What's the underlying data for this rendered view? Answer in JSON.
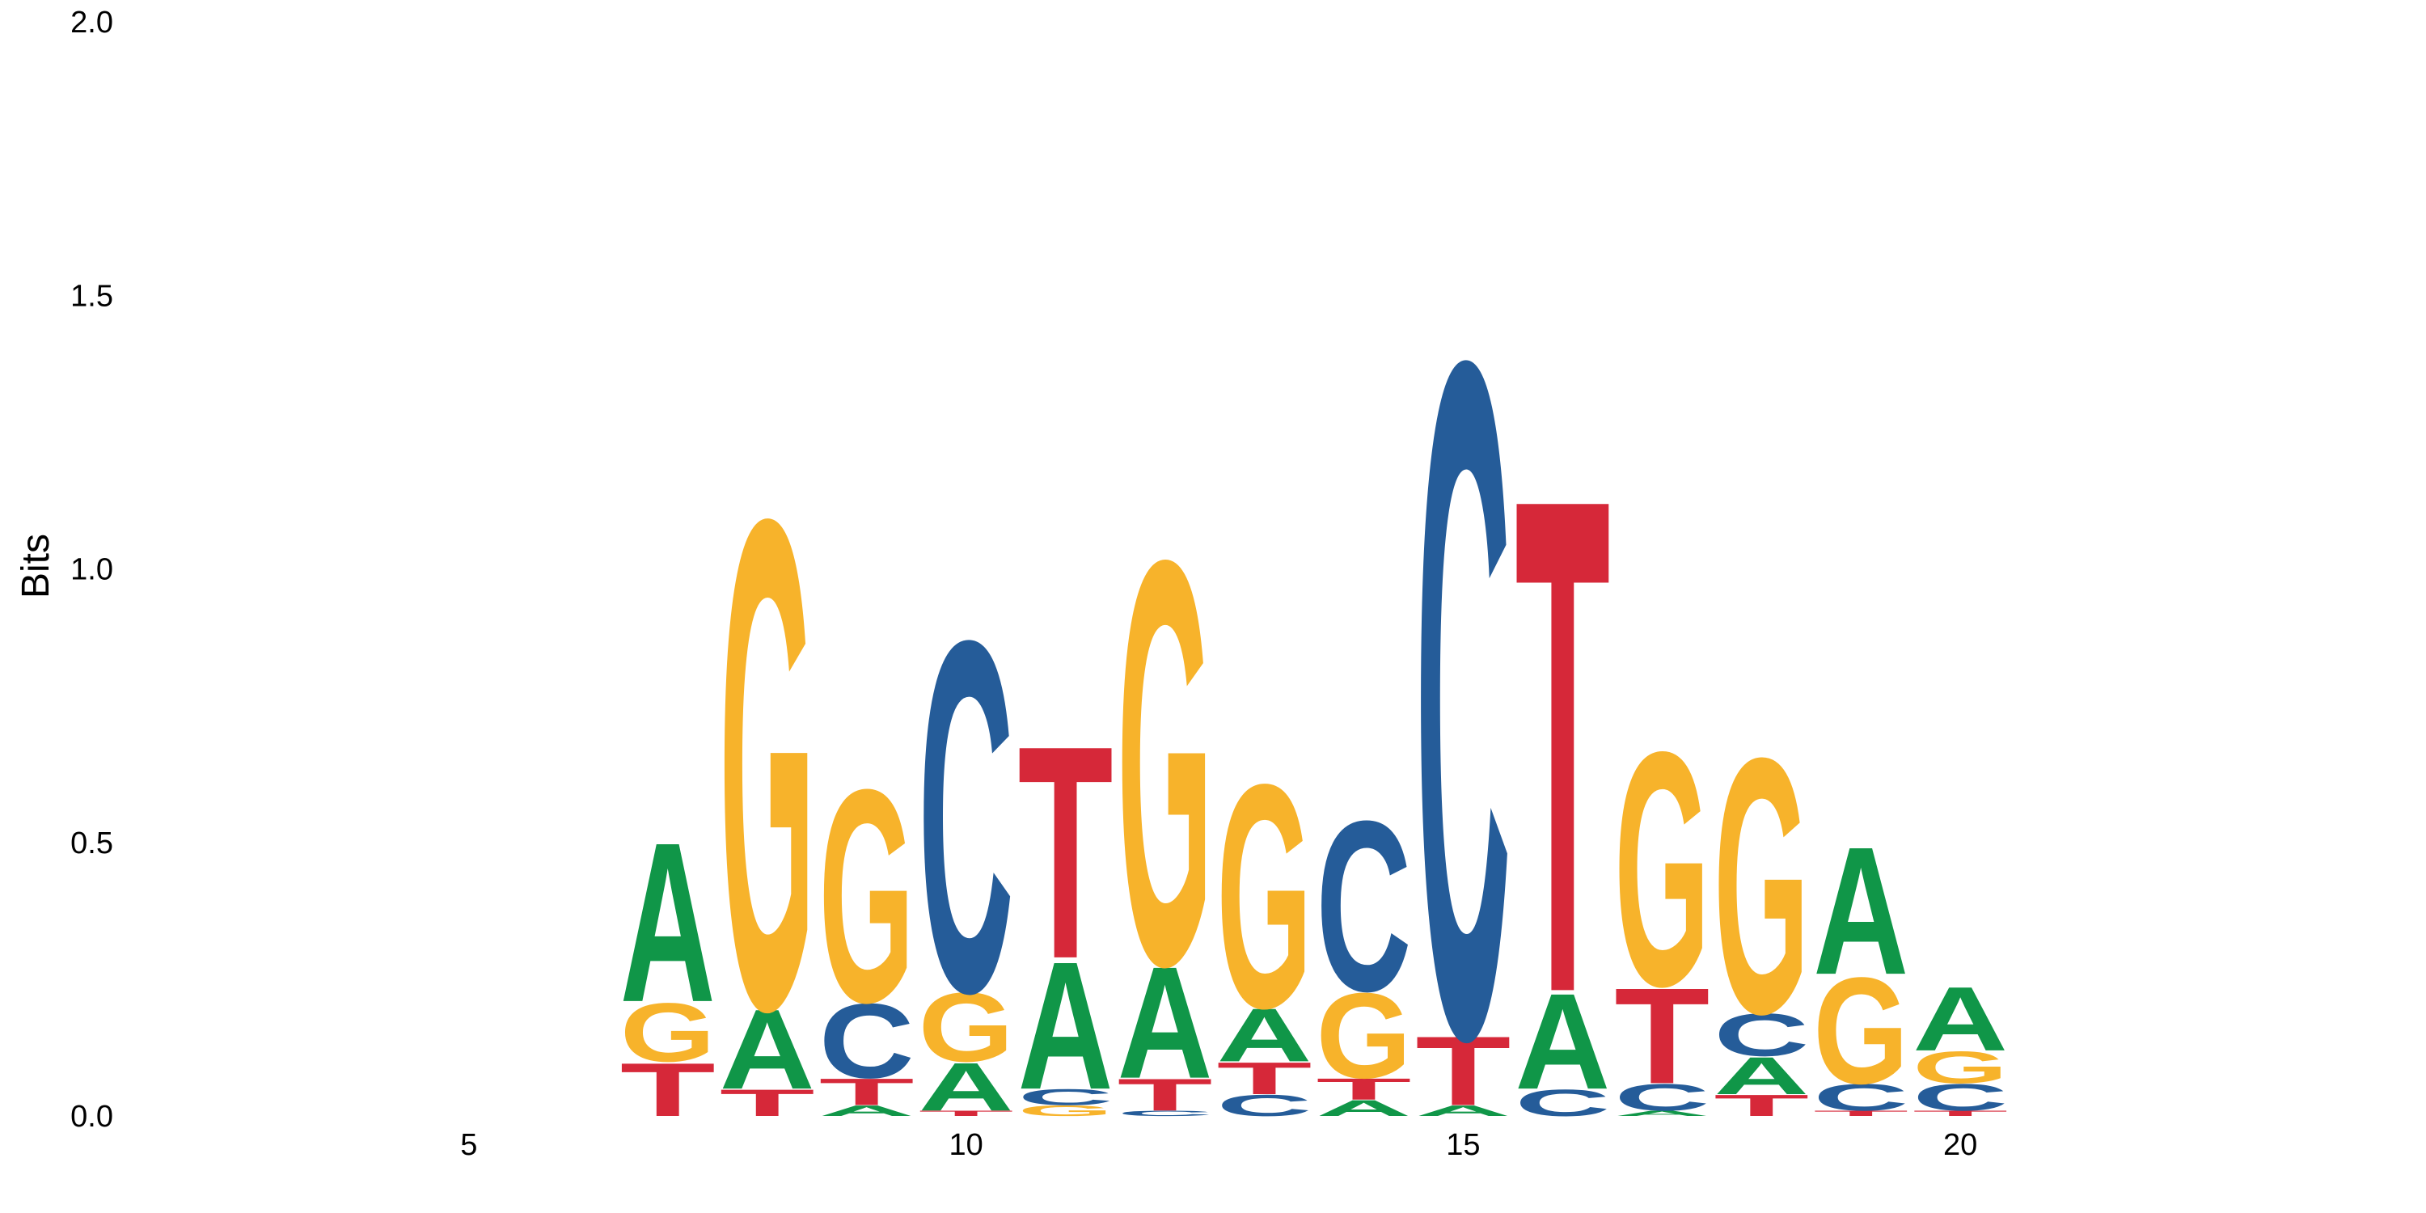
{
  "chart_data": {
    "type": "sequence-logo",
    "ylabel": "Bits",
    "ylim": [
      0,
      2.0
    ],
    "y_ticks": [
      "0.0",
      "0.5",
      "1.0",
      "1.5",
      "2.0"
    ],
    "x_range": [
      1,
      24
    ],
    "x_ticks": [
      "5",
      "10",
      "15",
      "20"
    ],
    "colors": {
      "A": "#109648",
      "C": "#255c99",
      "G": "#f7b32b",
      "T": "#d62839"
    },
    "positions": [
      {
        "pos": 7,
        "letters": [
          {
            "base": "T",
            "bits": 0.1
          },
          {
            "base": "G",
            "bits": 0.11
          },
          {
            "base": "A",
            "bits": 0.3
          }
        ]
      },
      {
        "pos": 8,
        "letters": [
          {
            "base": "T",
            "bits": 0.05
          },
          {
            "base": "A",
            "bits": 0.15
          },
          {
            "base": "G",
            "bits": 0.92
          }
        ]
      },
      {
        "pos": 9,
        "letters": [
          {
            "base": "A",
            "bits": 0.02
          },
          {
            "base": "T",
            "bits": 0.05
          },
          {
            "base": "C",
            "bits": 0.14
          },
          {
            "base": "G",
            "bits": 0.4
          }
        ]
      },
      {
        "pos": 10,
        "letters": [
          {
            "base": "T",
            "bits": 0.01
          },
          {
            "base": "A",
            "bits": 0.09
          },
          {
            "base": "G",
            "bits": 0.13
          },
          {
            "base": "C",
            "bits": 0.66
          }
        ]
      },
      {
        "pos": 11,
        "letters": [
          {
            "base": "G",
            "bits": 0.02
          },
          {
            "base": "C",
            "bits": 0.03
          },
          {
            "base": "A",
            "bits": 0.24
          },
          {
            "base": "T",
            "bits": 0.4
          }
        ]
      },
      {
        "pos": 12,
        "letters": [
          {
            "base": "C",
            "bits": 0.01
          },
          {
            "base": "T",
            "bits": 0.06
          },
          {
            "base": "A",
            "bits": 0.21
          },
          {
            "base": "G",
            "bits": 0.76
          }
        ]
      },
      {
        "pos": 13,
        "letters": [
          {
            "base": "C",
            "bits": 0.04
          },
          {
            "base": "T",
            "bits": 0.06
          },
          {
            "base": "A",
            "bits": 0.1
          },
          {
            "base": "G",
            "bits": 0.42
          }
        ]
      },
      {
        "pos": 14,
        "letters": [
          {
            "base": "A",
            "bits": 0.03
          },
          {
            "base": "T",
            "bits": 0.04
          },
          {
            "base": "G",
            "bits": 0.16
          },
          {
            "base": "C",
            "bits": 0.32
          }
        ]
      },
      {
        "pos": 15,
        "letters": [
          {
            "base": "A",
            "bits": 0.02
          },
          {
            "base": "T",
            "bits": 0.13
          },
          {
            "base": "C",
            "bits": 1.27
          }
        ]
      },
      {
        "pos": 16,
        "letters": [
          {
            "base": "C",
            "bits": 0.05
          },
          {
            "base": "A",
            "bits": 0.18
          },
          {
            "base": "T",
            "bits": 0.93
          }
        ]
      },
      {
        "pos": 17,
        "letters": [
          {
            "base": "A",
            "bits": 0.01
          },
          {
            "base": "C",
            "bits": 0.05
          },
          {
            "base": "T",
            "bits": 0.18
          },
          {
            "base": "G",
            "bits": 0.44
          }
        ]
      },
      {
        "pos": 18,
        "letters": [
          {
            "base": "T",
            "bits": 0.04
          },
          {
            "base": "A",
            "bits": 0.07
          },
          {
            "base": "C",
            "bits": 0.08
          },
          {
            "base": "G",
            "bits": 0.48
          }
        ]
      },
      {
        "pos": 19,
        "letters": [
          {
            "base": "T",
            "bits": 0.01
          },
          {
            "base": "C",
            "bits": 0.05
          },
          {
            "base": "G",
            "bits": 0.2
          },
          {
            "base": "A",
            "bits": 0.24
          }
        ]
      },
      {
        "pos": 20,
        "letters": [
          {
            "base": "T",
            "bits": 0.01
          },
          {
            "base": "C",
            "bits": 0.05
          },
          {
            "base": "G",
            "bits": 0.06
          },
          {
            "base": "A",
            "bits": 0.12
          }
        ]
      }
    ]
  }
}
